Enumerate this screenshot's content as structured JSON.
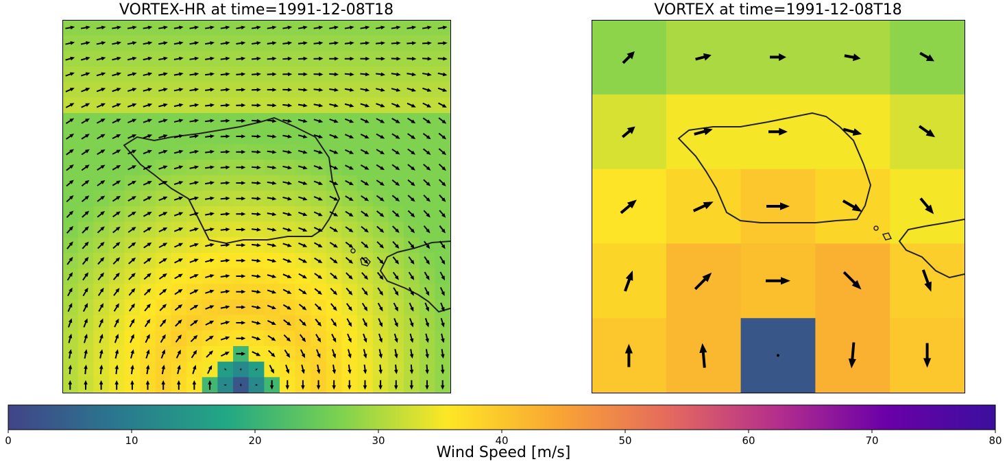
{
  "titles": {
    "left": "VORTEX-HR at time=1991-12-08T18",
    "right": "VORTEX at time=1991-12-08T18"
  },
  "colorbar": {
    "label": "Wind Speed [m/s]",
    "ticks": [
      "0",
      "10",
      "20",
      "30",
      "40",
      "50",
      "60",
      "70",
      "80"
    ],
    "range": [
      0,
      80
    ],
    "stops": [
      "#414487",
      "#2a788e",
      "#22a884",
      "#7ad151",
      "#fde725",
      "#f9a634",
      "#e56b5d",
      "#b52f8c",
      "#6a00a8",
      "#3b0f9e"
    ]
  },
  "chart_data": [
    {
      "type": "heatmap",
      "title": "VORTEX-HR at time=1991-12-08T18",
      "grid": [
        25,
        24
      ],
      "vmin": 0,
      "vmax": 80,
      "vortex_center": [
        11,
        23
      ],
      "calm_core_speed": 3,
      "overlay": "wind vectors and coastline"
    },
    {
      "type": "heatmap",
      "title": "VORTEX at time=1991-12-08T18",
      "grid": [
        5,
        5
      ],
      "vmin": 0,
      "vmax": 80,
      "values": [
        [
          28,
          30,
          30,
          30,
          28
        ],
        [
          33,
          35,
          35,
          35,
          33
        ],
        [
          36,
          38,
          40,
          38,
          35
        ],
        [
          38,
          42,
          41,
          43,
          39
        ],
        [
          40,
          42,
          3,
          43,
          40
        ]
      ],
      "vectors": [
        [
          [
            24,
            45
          ],
          [
            24,
            15
          ],
          [
            24,
            0
          ],
          [
            24,
            -10
          ],
          [
            24,
            -30
          ]
        ],
        [
          [
            24,
            40
          ],
          [
            28,
            15
          ],
          [
            28,
            0
          ],
          [
            28,
            -15
          ],
          [
            28,
            -35
          ]
        ],
        [
          [
            30,
            40
          ],
          [
            32,
            25
          ],
          [
            34,
            0
          ],
          [
            32,
            -30
          ],
          [
            30,
            -50
          ]
        ],
        [
          [
            32,
            70
          ],
          [
            34,
            45
          ],
          [
            36,
            0
          ],
          [
            36,
            -45
          ],
          [
            34,
            -70
          ]
        ],
        [
          [
            34,
            90
          ],
          [
            36,
            95
          ],
          [
            2,
            0
          ],
          [
            38,
            -95
          ],
          [
            36,
            -90
          ]
        ]
      ],
      "overlay": "coastline"
    }
  ]
}
